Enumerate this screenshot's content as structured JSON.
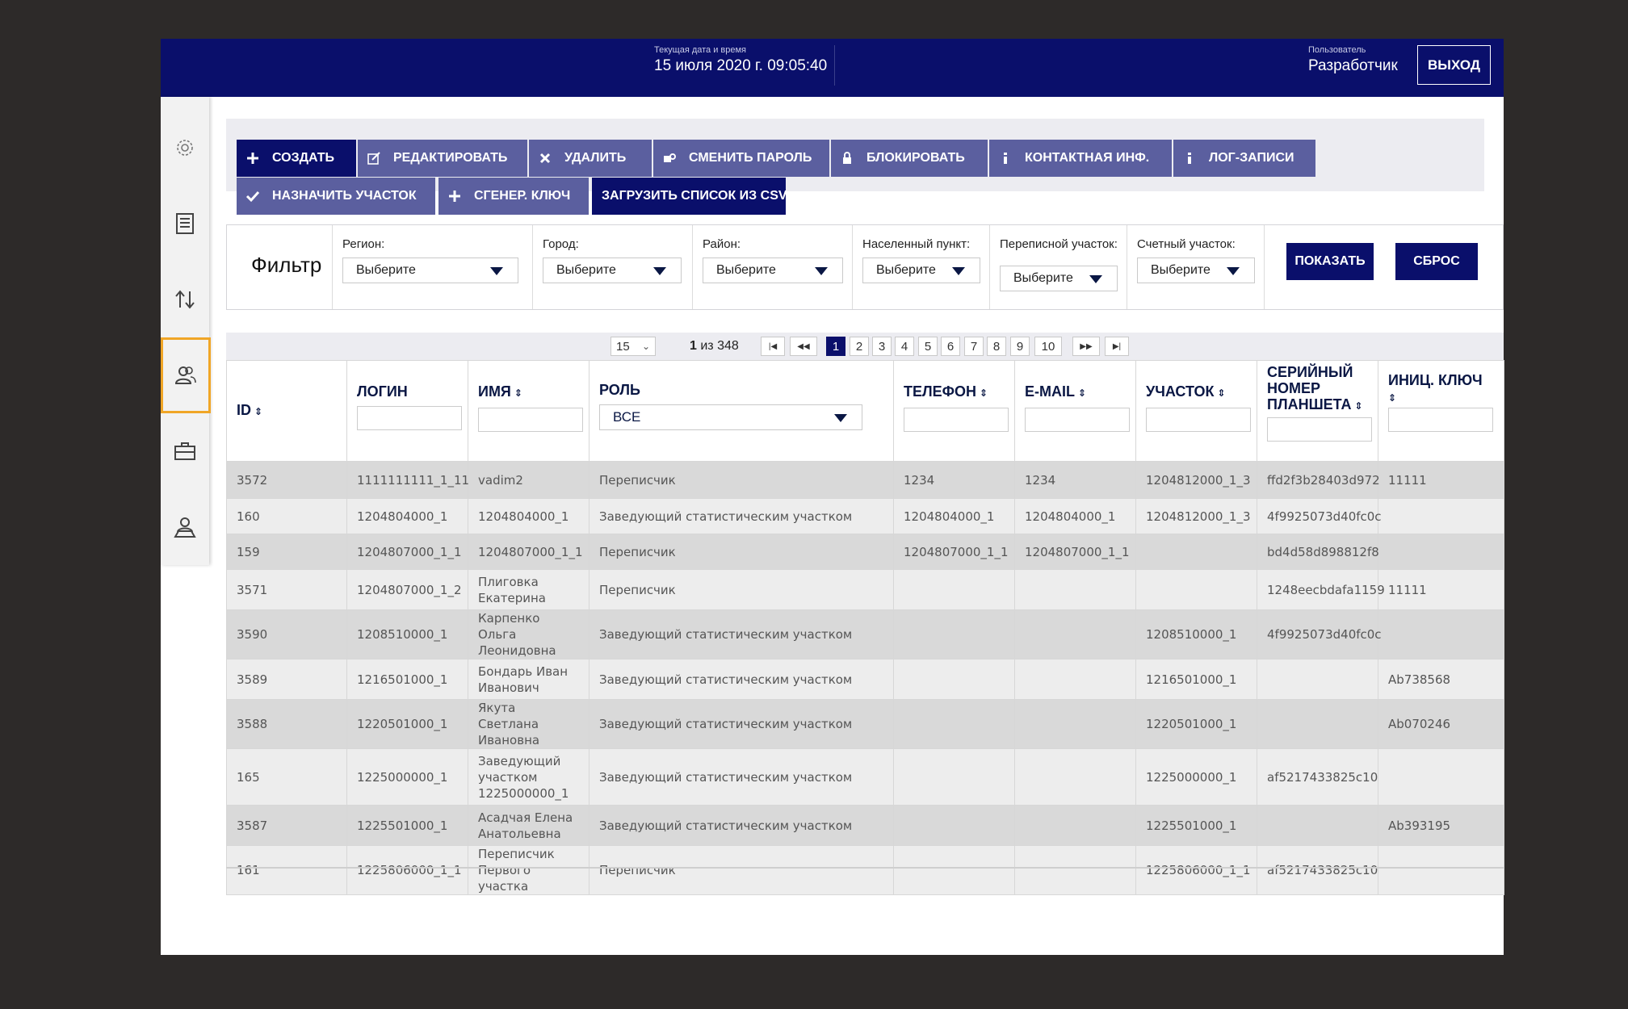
{
  "header": {
    "datetime_label": "Текущая дата и время",
    "datetime_value": "15 июля 2020 г. 09:05:40",
    "user_label": "Пользователь",
    "user_value": "Разработчик",
    "logout_label": "ВЫХОД",
    "bg_color": "#0a0f6b"
  },
  "sidebar": {
    "items": [
      {
        "icon": "gear-icon",
        "active": false
      },
      {
        "icon": "checklist-icon",
        "active": false
      },
      {
        "icon": "sort-arrows-icon",
        "active": false
      },
      {
        "icon": "users-icon",
        "active": true
      },
      {
        "icon": "briefcase-icon",
        "active": false
      },
      {
        "icon": "map-user-icon",
        "active": false
      }
    ],
    "active_color": "#f0a627"
  },
  "toolbar": {
    "create": "СОЗДАТЬ",
    "edit": "РЕДАКТИРОВАТЬ",
    "delete": "УДАЛИТЬ",
    "change_password": "СМЕНИТЬ ПАРОЛЬ",
    "block": "БЛОКИРОВАТЬ",
    "contact_info": "КОНТАКТНАЯ ИНФ.",
    "log_records": "ЛОГ-ЗАПИСИ",
    "assign_area": "НАЗНАЧИТЬ УЧАСТОК",
    "generate_key": "СГЕНЕР. КЛЮЧ",
    "upload_csv": "ЗАГРУЗИТЬ СПИСОК ИЗ CSV"
  },
  "filter": {
    "title": "Фильтр",
    "region_label": "Регион:",
    "city_label": "Город:",
    "district_label": "Район:",
    "settlement_label": "Населенный пункт:",
    "census_area_label": "Переписной участок:",
    "counting_area_label": "Счетный участок:",
    "select_placeholder": "Выберите",
    "show_button": "ПОКАЗАТЬ",
    "reset_button": "СБРОС"
  },
  "pager": {
    "page_size": "15",
    "current": "1",
    "of_text": "из 348",
    "pages": [
      "1",
      "2",
      "3",
      "4",
      "5",
      "6",
      "7",
      "8",
      "9",
      "10"
    ]
  },
  "table": {
    "headers": {
      "id": "ID",
      "login": "ЛОГИН",
      "name": "ИМЯ",
      "role": "РОЛЬ",
      "role_filter": "ВСЕ",
      "phone": "ТЕЛЕФОН",
      "email": "E-MAIL",
      "area": "УЧАСТОК",
      "serial": "СЕРИЙНЫЙ НОМЕР ПЛАНШЕТА",
      "init_key": "ИНИЦ. КЛЮЧ"
    },
    "rows": [
      {
        "id": "3572",
        "login": "1111111111_1_11",
        "name": "vadim2",
        "role": "Переписчик",
        "phone": "1234",
        "email": "1234",
        "area": "1204812000_1_3",
        "serial": "ffd2f3b28403d972",
        "key": "11111"
      },
      {
        "id": "160",
        "login": "1204804000_1",
        "name": "1204804000_1",
        "role": "Заведующий статистическим участком",
        "phone": "1204804000_1",
        "email": "1204804000_1",
        "area": "1204812000_1_3",
        "serial": "4f9925073d40fc0c",
        "key": ""
      },
      {
        "id": "159",
        "login": "1204807000_1_1",
        "name": "1204807000_1_1",
        "role": "Переписчик",
        "phone": "1204807000_1_1",
        "email": "1204807000_1_1",
        "area": "",
        "serial": "bd4d58d898812f8",
        "key": ""
      },
      {
        "id": "3571",
        "login": "1204807000_1_2",
        "name": "Плиговка Екатерина",
        "role": "Переписчик",
        "phone": "",
        "email": "",
        "area": "",
        "serial": "1248eecbdafa1159",
        "key": "11111"
      },
      {
        "id": "3590",
        "login": "1208510000_1",
        "name": "Карпенко Ольга Леонидовна",
        "role": "Заведующий статистическим участком",
        "phone": "",
        "email": "",
        "area": "1208510000_1",
        "serial": "4f9925073d40fc0c",
        "key": ""
      },
      {
        "id": "3589",
        "login": "1216501000_1",
        "name": "Бондарь Иван Иванович",
        "role": "Заведующий статистическим участком",
        "phone": "",
        "email": "",
        "area": "1216501000_1",
        "serial": "",
        "key": "Ab738568"
      },
      {
        "id": "3588",
        "login": "1220501000_1",
        "name": "Якута Светлана Ивановна",
        "role": "Заведующий статистическим участком",
        "phone": "",
        "email": "",
        "area": "1220501000_1",
        "serial": "",
        "key": "Ab070246"
      },
      {
        "id": "165",
        "login": "1225000000_1",
        "name": "Заведующий участком 1225000000_1",
        "role": "Заведующий статистическим участком",
        "phone": "",
        "email": "",
        "area": "1225000000_1",
        "serial": "af5217433825c10",
        "key": ""
      },
      {
        "id": "3587",
        "login": "1225501000_1",
        "name": "Асадчая Елена Анатольевна",
        "role": "Заведующий статистическим участком",
        "phone": "",
        "email": "",
        "area": "1225501000_1",
        "serial": "",
        "key": "Ab393195"
      },
      {
        "id": "161",
        "login": "1225806000_1_1",
        "name": "Переписчик Первого участка",
        "role": "Переписчик",
        "phone": "",
        "email": "",
        "area": "1225806000_1_1",
        "serial": "af5217433825c10",
        "key": ""
      }
    ]
  }
}
